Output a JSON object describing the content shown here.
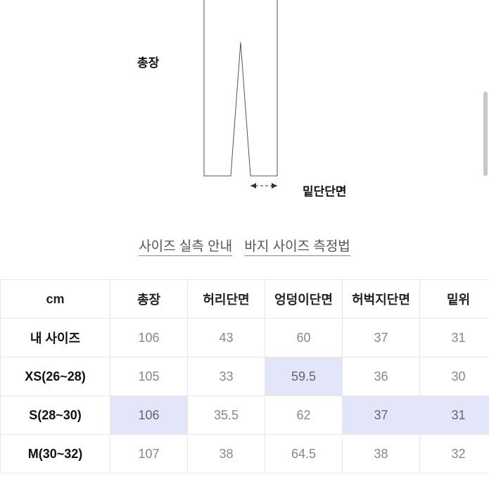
{
  "diagram": {
    "label_total_length": "총장",
    "label_bottom_width": "밑단단면"
  },
  "links": {
    "size_guide": "사이즈 실측 안내",
    "measure_guide": "바지 사이즈 측정법"
  },
  "table": {
    "columns": [
      "cm",
      "총장",
      "허리단면",
      "엉덩이단면",
      "허벅지단면",
      "밑위"
    ],
    "rows": [
      {
        "label": "내 사이즈",
        "cells": [
          {
            "v": "106",
            "hl": false
          },
          {
            "v": "43",
            "hl": false
          },
          {
            "v": "60",
            "hl": false
          },
          {
            "v": "37",
            "hl": false
          },
          {
            "v": "31",
            "hl": false
          }
        ]
      },
      {
        "label": "XS(26~28)",
        "cells": [
          {
            "v": "105",
            "hl": false
          },
          {
            "v": "33",
            "hl": false
          },
          {
            "v": "59.5",
            "hl": true
          },
          {
            "v": "36",
            "hl": false
          },
          {
            "v": "30",
            "hl": false
          }
        ]
      },
      {
        "label": "S(28~30)",
        "cells": [
          {
            "v": "106",
            "hl": true
          },
          {
            "v": "35.5",
            "hl": false
          },
          {
            "v": "62",
            "hl": false
          },
          {
            "v": "37",
            "hl": true
          },
          {
            "v": "31",
            "hl": true
          }
        ]
      },
      {
        "label": "M(30~32)",
        "cells": [
          {
            "v": "107",
            "hl": false
          },
          {
            "v": "38",
            "hl": false
          },
          {
            "v": "64.5",
            "hl": false
          },
          {
            "v": "38",
            "hl": false
          },
          {
            "v": "32",
            "hl": false
          }
        ]
      }
    ],
    "highlight_color": "#e3e6f9",
    "border_color": "#e8e8e8",
    "header_text_color": "#111111",
    "cell_text_color": "#888888"
  }
}
